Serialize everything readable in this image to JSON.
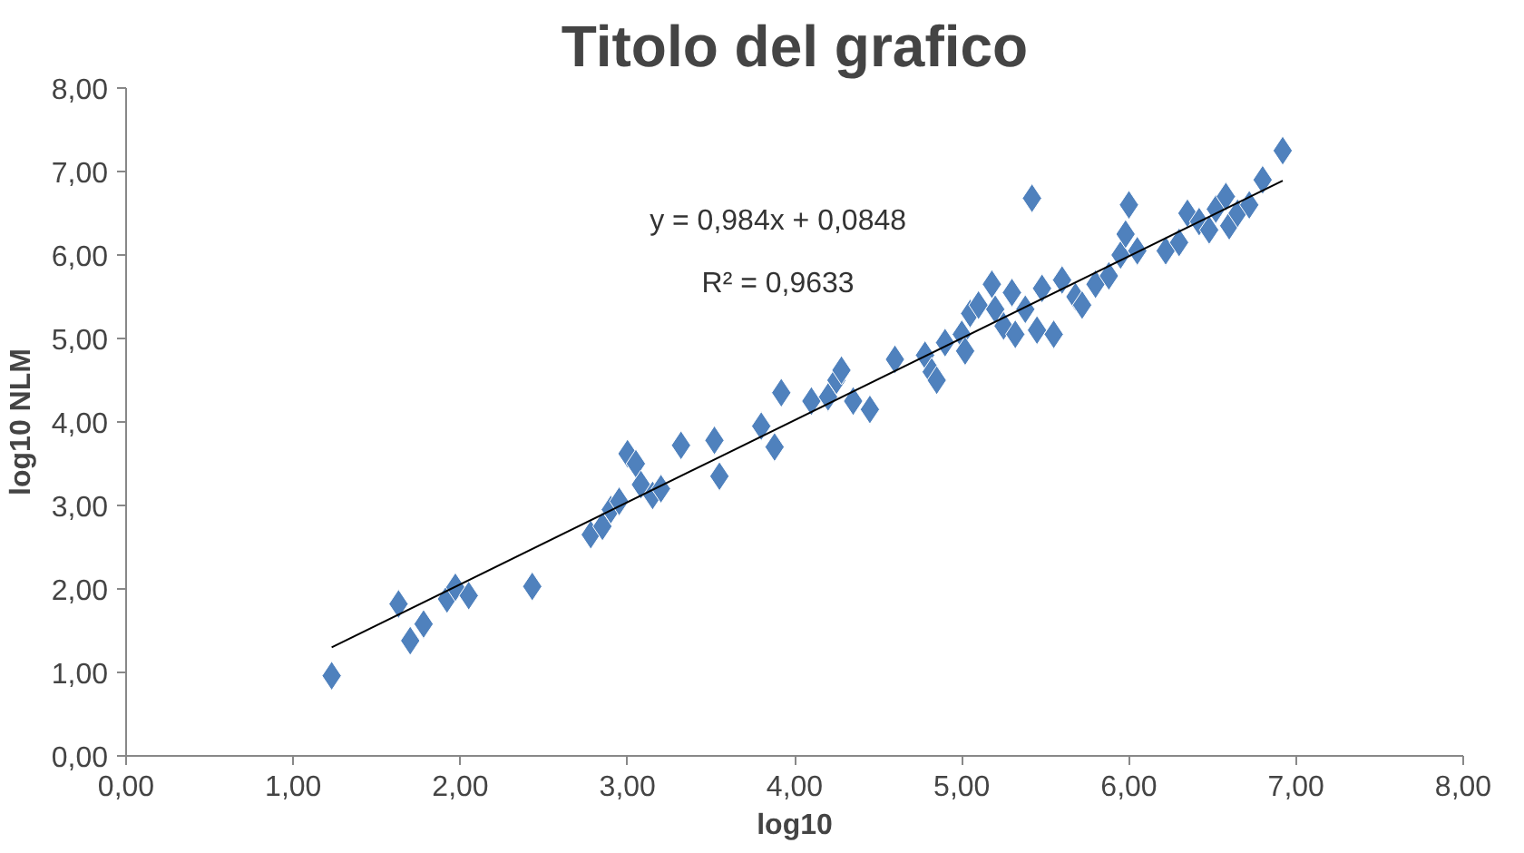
{
  "chart_data": {
    "type": "scatter",
    "title": "Titolo del grafico",
    "xlabel": "log10",
    "ylabel": "log10 NLM",
    "xlim": [
      0,
      8
    ],
    "ylim": [
      0,
      8
    ],
    "xticks": [
      {
        "value": 0,
        "label": "0,00"
      },
      {
        "value": 1,
        "label": "1,00"
      },
      {
        "value": 2,
        "label": "2,00"
      },
      {
        "value": 3,
        "label": "3,00"
      },
      {
        "value": 4,
        "label": "4,00"
      },
      {
        "value": 5,
        "label": "5,00"
      },
      {
        "value": 6,
        "label": "6,00"
      },
      {
        "value": 7,
        "label": "7,00"
      },
      {
        "value": 8,
        "label": "8,00"
      }
    ],
    "yticks": [
      {
        "value": 0,
        "label": "0,00"
      },
      {
        "value": 1,
        "label": "1,00"
      },
      {
        "value": 2,
        "label": "2,00"
      },
      {
        "value": 3,
        "label": "3,00"
      },
      {
        "value": 4,
        "label": "4,00"
      },
      {
        "value": 5,
        "label": "5,00"
      },
      {
        "value": 6,
        "label": "6,00"
      },
      {
        "value": 7,
        "label": "7,00"
      },
      {
        "value": 8,
        "label": "8,00"
      }
    ],
    "grid": false,
    "annotations": [
      "y = 0,984x + 0,0848",
      "R² = 0,9633"
    ],
    "series": [
      {
        "marker": "diamond",
        "color": "#4f81bd",
        "x": [
          1.23,
          1.63,
          1.7,
          1.78,
          1.92,
          1.97,
          2.05,
          2.43,
          2.78,
          2.85,
          2.9,
          2.95,
          3.0,
          3.05,
          3.08,
          3.15,
          3.2,
          3.32,
          3.52,
          3.55,
          3.8,
          3.88,
          3.92,
          4.1,
          4.2,
          4.25,
          4.28,
          4.35,
          4.45,
          4.6,
          4.78,
          4.82,
          4.85,
          4.9,
          5.0,
          5.02,
          5.05,
          5.1,
          5.18,
          5.2,
          5.25,
          5.3,
          5.32,
          5.38,
          5.42,
          5.45,
          5.48,
          5.55,
          5.6,
          5.68,
          5.72,
          5.8,
          5.88,
          5.95,
          5.98,
          6.0,
          6.05,
          6.22,
          6.3,
          6.35,
          6.42,
          6.48,
          6.52,
          6.58,
          6.6,
          6.65,
          6.72,
          6.8,
          6.92
        ],
        "values": [
          0.96,
          1.82,
          1.38,
          1.58,
          1.88,
          2.02,
          1.92,
          2.03,
          2.65,
          2.75,
          2.95,
          3.05,
          3.62,
          3.5,
          3.25,
          3.12,
          3.2,
          3.72,
          3.78,
          3.35,
          3.95,
          3.7,
          4.35,
          4.25,
          4.3,
          4.5,
          4.62,
          4.25,
          4.15,
          4.75,
          4.8,
          4.6,
          4.5,
          4.95,
          5.05,
          4.85,
          5.3,
          5.4,
          5.65,
          5.35,
          5.15,
          5.55,
          5.05,
          5.35,
          6.68,
          5.1,
          5.6,
          5.05,
          5.7,
          5.5,
          5.4,
          5.65,
          5.75,
          6.0,
          6.25,
          6.6,
          6.05,
          6.05,
          6.15,
          6.5,
          6.4,
          6.3,
          6.55,
          6.7,
          6.35,
          6.5,
          6.6,
          6.9,
          7.25
        ]
      },
      {
        "type": "line",
        "color": "#000000",
        "x": [
          1.23,
          6.92
        ],
        "values": [
          1.3,
          6.89
        ]
      }
    ]
  }
}
